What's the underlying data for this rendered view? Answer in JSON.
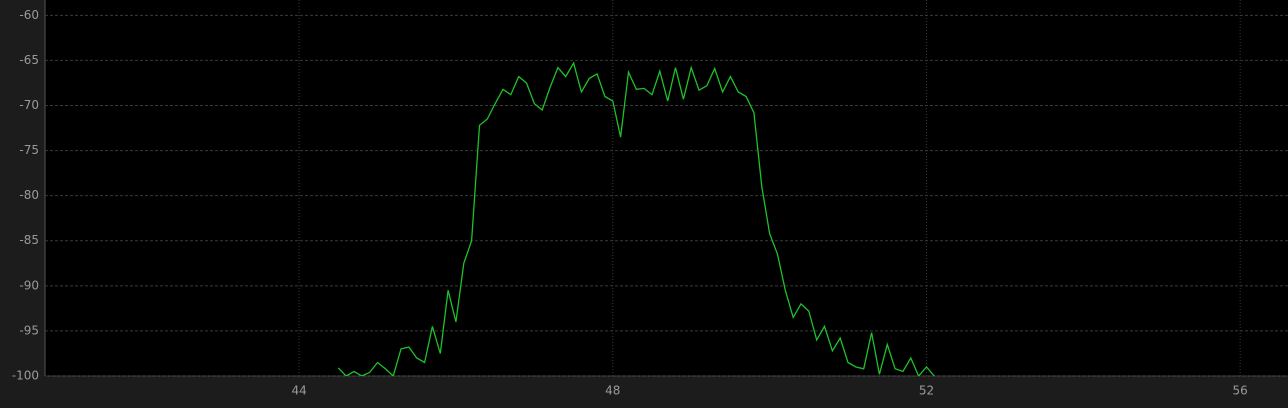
{
  "chart_data": {
    "type": "line",
    "x": [
      44.5,
      44.6,
      44.7,
      44.8,
      44.9,
      45.0,
      45.1,
      45.2,
      45.3,
      45.4,
      45.5,
      45.6,
      45.7,
      45.8,
      45.9,
      46.0,
      46.1,
      46.2,
      46.3,
      46.4,
      46.5,
      46.6,
      46.7,
      46.8,
      46.9,
      47.0,
      47.1,
      47.2,
      47.3,
      47.4,
      47.5,
      47.6,
      47.7,
      47.8,
      47.9,
      48.0,
      48.1,
      48.2,
      48.3,
      48.4,
      48.5,
      48.6,
      48.7,
      48.8,
      48.9,
      49.0,
      49.1,
      49.2,
      49.3,
      49.4,
      49.5,
      49.6,
      49.7,
      49.8,
      49.9,
      50.0,
      50.1,
      50.2,
      50.3,
      50.4,
      50.5,
      50.6,
      50.7,
      50.8,
      50.9,
      51.0,
      51.1,
      51.2,
      51.3,
      51.4,
      51.5,
      51.6,
      51.7,
      51.8,
      51.9,
      52.0,
      52.1
    ],
    "series": [
      {
        "color": "#1fc12a",
        "values": [
          -99.1,
          -100,
          -99.5,
          -100,
          -99.6,
          -98.5,
          -99.2,
          -100,
          -97,
          -96.8,
          -98,
          -98.5,
          -94.5,
          -97.5,
          -90.5,
          -94,
          -87.5,
          -85,
          -72.2,
          -71.5,
          -69.8,
          -68.2,
          -68.8,
          -66.8,
          -67.5,
          -69.8,
          -70.5,
          -68,
          -65.8,
          -66.8,
          -65.3,
          -68.5,
          -67,
          -66.5,
          -69,
          -69.5,
          -73.5,
          -66.3,
          -68.2,
          -68.1,
          -68.8,
          -66.2,
          -69.5,
          -65.8,
          -69.3,
          -65.8,
          -68.3,
          -67.8,
          -65.9,
          -68.5,
          -66.8,
          -68.5,
          -69,
          -70.8,
          -79,
          -84.2,
          -86.5,
          -90.5,
          -93.5,
          -92,
          -92.8,
          -96,
          -94.5,
          -97.2,
          -95.8,
          -98.5,
          -99,
          -99.2,
          -95.2,
          -99.8,
          -96.5,
          -99.2,
          -99.5,
          -98,
          -100,
          -99,
          -100
        ]
      }
    ],
    "xlim": [
      40.76,
      56.61
    ],
    "xticks": [
      44,
      48,
      52,
      56
    ],
    "ylim": [
      -100,
      -58.3
    ],
    "yticks": [
      -100,
      -95,
      -90,
      -85,
      -80,
      -75,
      -70,
      -65,
      -60
    ],
    "grid": true
  }
}
